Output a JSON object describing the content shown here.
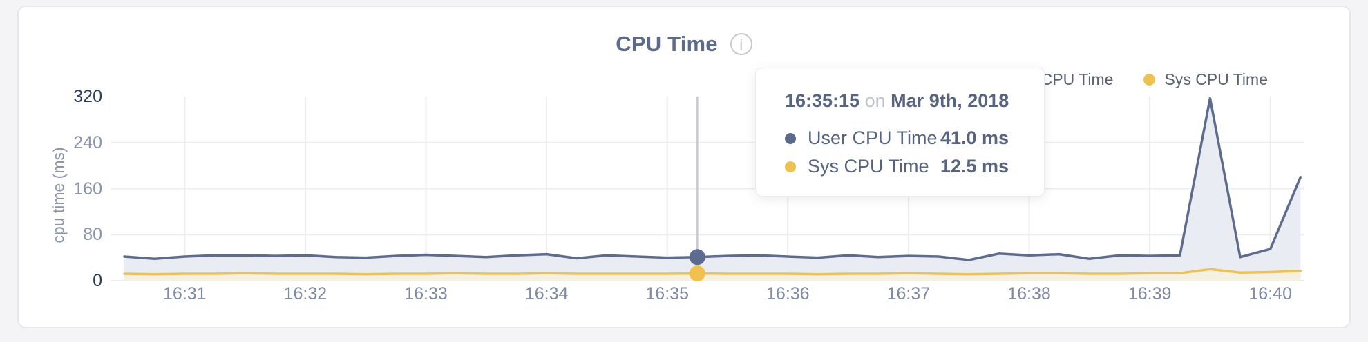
{
  "card": {
    "title": "CPU Time",
    "info_icon": "i"
  },
  "legend": {
    "items": [
      {
        "label": "User CPU Time",
        "color": "#5d6b8d"
      },
      {
        "label": "Sys CPU Time",
        "color": "#efc24f"
      }
    ]
  },
  "tooltip": {
    "time": "16:35:15",
    "conjunction": "on",
    "date": "Mar 9th, 2018",
    "rows": [
      {
        "label": "User CPU Time",
        "value": "41.0 ms",
        "color": "#5d6b8d"
      },
      {
        "label": "Sys CPU Time",
        "value": "12.5 ms",
        "color": "#efc24f"
      }
    ]
  },
  "chart_data": {
    "type": "area",
    "title": "CPU Time",
    "xlabel": "",
    "ylabel": "cpu time (ms)",
    "ylim": [
      0,
      320
    ],
    "yticks": [
      0,
      80,
      160,
      240,
      320
    ],
    "xticks": [
      "16:31",
      "16:32",
      "16:33",
      "16:34",
      "16:35",
      "16:36",
      "16:37",
      "16:38",
      "16:39",
      "16:40"
    ],
    "grid": true,
    "legend_position": "top-right",
    "x_interval_seconds": 15,
    "x_times": [
      "16:30:30",
      "16:30:45",
      "16:31:00",
      "16:31:15",
      "16:31:30",
      "16:31:45",
      "16:32:00",
      "16:32:15",
      "16:32:30",
      "16:32:45",
      "16:33:00",
      "16:33:15",
      "16:33:30",
      "16:33:45",
      "16:34:00",
      "16:34:15",
      "16:34:30",
      "16:34:45",
      "16:35:00",
      "16:35:15",
      "16:35:30",
      "16:35:45",
      "16:36:00",
      "16:36:15",
      "16:36:30",
      "16:36:45",
      "16:37:00",
      "16:37:15",
      "16:37:30",
      "16:37:45",
      "16:38:00",
      "16:38:15",
      "16:38:30",
      "16:38:45",
      "16:39:00",
      "16:39:15",
      "16:39:30",
      "16:39:45",
      "16:40:00",
      "16:40:15"
    ],
    "series": [
      {
        "name": "User CPU Time",
        "color": "#5d6b8d",
        "fill": "#e9ecf2",
        "unit": "ms",
        "values": [
          42,
          38,
          42,
          44,
          44,
          43,
          44,
          41,
          40,
          43,
          45,
          43,
          41,
          44,
          46,
          39,
          44,
          42,
          40,
          41,
          43,
          44,
          42,
          40,
          44,
          41,
          43,
          42,
          36,
          47,
          44,
          46,
          38,
          44,
          43,
          44,
          317,
          41,
          55,
          180
        ]
      },
      {
        "name": "Sys CPU Time",
        "color": "#efc24f",
        "fill": "#f4f1e3",
        "unit": "ms",
        "values": [
          12,
          11,
          12,
          12,
          13,
          12,
          12,
          12,
          11,
          12,
          12,
          13,
          12,
          12,
          13,
          12,
          12,
          12,
          12,
          12.5,
          12,
          12,
          12,
          11,
          12,
          12,
          13,
          12,
          11,
          12,
          13,
          13,
          12,
          12,
          13,
          13,
          20,
          14,
          15,
          17
        ]
      }
    ],
    "hover": {
      "index": 19,
      "time": "16:35:15",
      "date": "Mar 9th, 2018",
      "values": [
        "41.0 ms",
        "12.5 ms"
      ]
    }
  }
}
